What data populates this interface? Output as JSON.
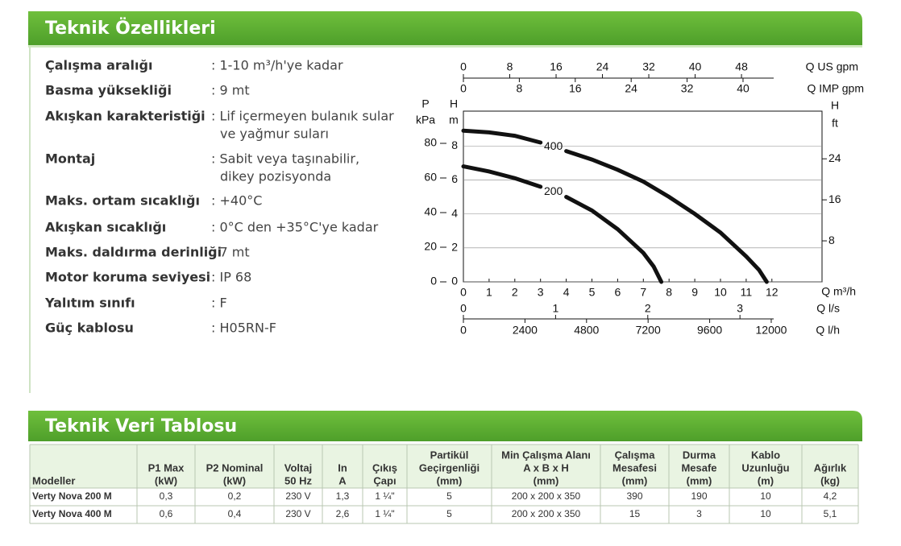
{
  "header": {
    "title": "Teknik Özellikleri"
  },
  "specs": [
    {
      "label": "Çalışma aralığı",
      "value": [
        ": 1-10 m³/h'ye kadar"
      ]
    },
    {
      "label": "Basma yüksekliği",
      "value": [
        ": 9 mt"
      ]
    },
    {
      "label": "Akışkan karakteristiği",
      "value": [
        ": Lif içermeyen bulanık sular",
        "ve yağmur suları"
      ]
    },
    {
      "label": "Montaj",
      "value": [
        ": Sabit veya taşınabilir,",
        "dikey pozisyonda"
      ]
    },
    {
      "label": "Maks. ortam sıcaklığı",
      "value": [
        ": +40°C"
      ]
    },
    {
      "label": "Akışkan sıcaklığı",
      "value": [
        ": 0°C den +35°C'ye kadar"
      ]
    },
    {
      "label": "Maks. daldırma derinliği",
      "value": [
        ": 7 mt"
      ]
    },
    {
      "label": "Motor koruma seviyesi",
      "value": [
        ": IP 68"
      ]
    },
    {
      "label": "Yalıtım sınıfı",
      "value": [
        ": F"
      ]
    },
    {
      "label": "Güç kablosu",
      "value": [
        ": H05RN-F"
      ]
    }
  ],
  "chart": {
    "type": "line",
    "color": "#111111",
    "grid": true,
    "labels": {
      "p": "P",
      "kpa": "kPa",
      "h_left": "H",
      "m": "m",
      "h_right": "H",
      "ft": "ft"
    },
    "axes": {
      "us_gpm": {
        "label": "Q US gpm",
        "xlim": [
          0,
          61.9
        ],
        "xticks": [
          0,
          8,
          16,
          24,
          32,
          40,
          48
        ]
      },
      "imp_gpm": {
        "label": "Q IMP gpm",
        "xlim": [
          0,
          51.3
        ],
        "xticks": [
          0,
          8,
          16,
          24,
          32,
          40
        ]
      },
      "m3h": {
        "label": "Q m³/h",
        "xlim": [
          0,
          13.95
        ],
        "xticks": [
          0,
          1,
          2,
          3,
          4,
          5,
          6,
          7,
          8,
          9,
          10,
          11,
          12
        ]
      },
      "ls": {
        "label": "Q l/s",
        "xlim": [
          0,
          3.89
        ],
        "xticks": [
          0,
          1,
          2,
          3
        ]
      },
      "lh": {
        "label": "Q l/h",
        "xlim": [
          0,
          13980
        ],
        "xticks": [
          0,
          2400,
          4800,
          7200,
          9600,
          12000
        ]
      },
      "kpa": {
        "ylim": [
          0,
          98.6
        ],
        "yticks": [
          0,
          20,
          40,
          60,
          80
        ]
      },
      "m": {
        "ylim": [
          0,
          10.05
        ],
        "yticks": [
          0,
          2,
          4,
          6,
          8
        ]
      },
      "ft": {
        "ylim": [
          0,
          33.3
        ],
        "yticks": [
          8,
          16,
          24
        ]
      }
    },
    "series": [
      {
        "name": "400",
        "x": [
          0,
          1,
          2,
          3,
          3.5,
          4,
          5,
          6,
          7,
          8,
          9,
          10,
          11,
          11.5,
          11.8
        ],
        "values": [
          8.9,
          8.8,
          8.6,
          8.2,
          null,
          7.7,
          7.2,
          6.6,
          5.9,
          5.0,
          4.0,
          2.9,
          1.5,
          0.7,
          0
        ]
      },
      {
        "name": "200",
        "x": [
          0,
          1,
          2,
          3,
          3.5,
          4,
          5,
          6,
          7,
          7.4,
          7.7
        ],
        "values": [
          6.8,
          6.5,
          6.1,
          5.6,
          null,
          5.0,
          4.2,
          3.1,
          1.7,
          0.9,
          0
        ]
      }
    ]
  },
  "table": {
    "title": "Teknik Veri Tablosu",
    "header": [
      [
        "Modeller"
      ],
      [
        "P1 Max",
        "(kW)"
      ],
      [
        "P2 Nominal",
        "(kW)"
      ],
      [
        "Voltaj",
        "50 Hz"
      ],
      [
        "In",
        "A"
      ],
      [
        "Çıkış",
        "Çapı"
      ],
      [
        "Partikül",
        "Geçirgenliği",
        "(mm)"
      ],
      [
        "Min Çalışma Alanı",
        "A x B x H",
        "(mm)"
      ],
      [
        "Çalışma",
        "Mesafesi",
        "(mm)"
      ],
      [
        "Durma",
        "Mesafe",
        "(mm)"
      ],
      [
        "Kablo",
        "Uzunluğu",
        "(m)"
      ],
      [
        "Ağırlık",
        "(kg)"
      ]
    ],
    "rows": [
      [
        "Verty Nova 200 M",
        "0,3",
        "0,2",
        "230 V",
        "1,3",
        "1 ¼\"",
        "5",
        "200 x 200 x 350",
        "390",
        "190",
        "10",
        "4,2"
      ],
      [
        "Verty Nova 400 M",
        "0,6",
        "0,4",
        "230 V",
        "2,6",
        "1 ¼\"",
        "5",
        "200 x 200 x 350",
        "15",
        "3",
        "10",
        "5,1"
      ]
    ]
  }
}
